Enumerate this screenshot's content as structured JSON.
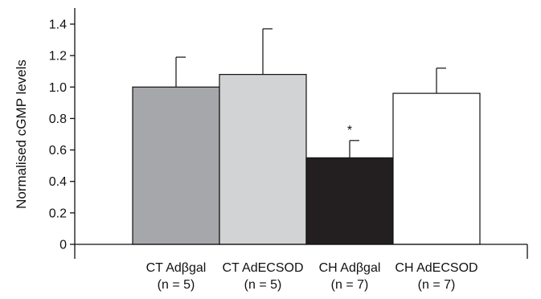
{
  "chart_data": {
    "type": "bar",
    "ylabel": "Normalised cGMP levels",
    "xlabel": "",
    "title": "",
    "ylim": [
      0,
      1.4
    ],
    "yticks": [
      0,
      0.2,
      0.4,
      0.6,
      0.8,
      1.0,
      1.2,
      1.4
    ],
    "ytick_labels": [
      "0",
      "0.2",
      "0.4",
      "0.6",
      "0.8",
      "1.0",
      "1.2",
      "1.4"
    ],
    "categories": [
      {
        "line1": "CT Adβgal",
        "line2": "(n = 5)"
      },
      {
        "line1": "CT AdECSOD",
        "line2": "(n = 5)"
      },
      {
        "line1": "CH Adβgal",
        "line2": "(n = 7)"
      },
      {
        "line1": "CH AdECSOD",
        "line2": "(n = 7)"
      }
    ],
    "values": [
      1.0,
      1.08,
      0.55,
      0.96
    ],
    "error_upper": [
      0.19,
      0.29,
      0.11,
      0.16
    ],
    "colors": [
      "#a6a7ab",
      "#d2d3d5",
      "#231f20",
      "#ffffff"
    ],
    "annotations": [
      "",
      "",
      "*",
      ""
    ],
    "grid": false
  }
}
